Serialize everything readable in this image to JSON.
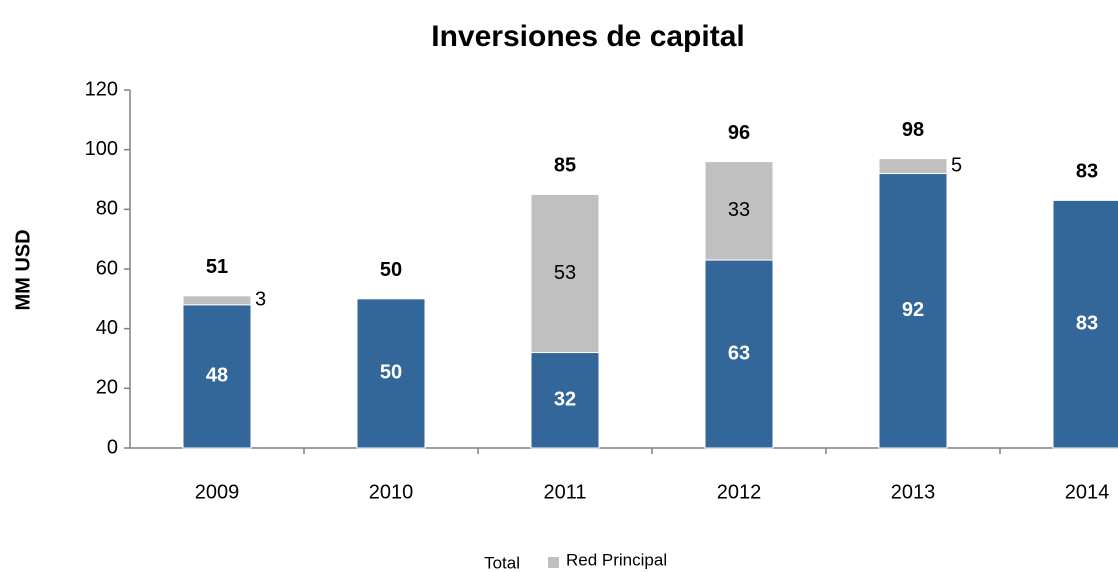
{
  "chart_data": {
    "type": "stacked_bar",
    "title": "Inversiones de capital",
    "y_label": "MM USD",
    "categories": [
      "2009",
      "2010",
      "2011",
      "2012",
      "2013",
      "2014"
    ],
    "series": [
      {
        "name": "Total",
        "color": "#336699",
        "values": [
          48,
          50,
          32,
          63,
          92,
          83
        ]
      },
      {
        "name": "Red Principal",
        "color": "#c0c0c0",
        "values": [
          3,
          null,
          53,
          33,
          5,
          null
        ]
      }
    ],
    "totals": [
      51,
      50,
      85,
      96,
      98,
      83
    ],
    "ylim": [
      0,
      120
    ],
    "yticks": [
      0,
      20,
      40,
      60,
      80,
      100,
      120
    ],
    "grid": false,
    "legend": "bottom"
  }
}
